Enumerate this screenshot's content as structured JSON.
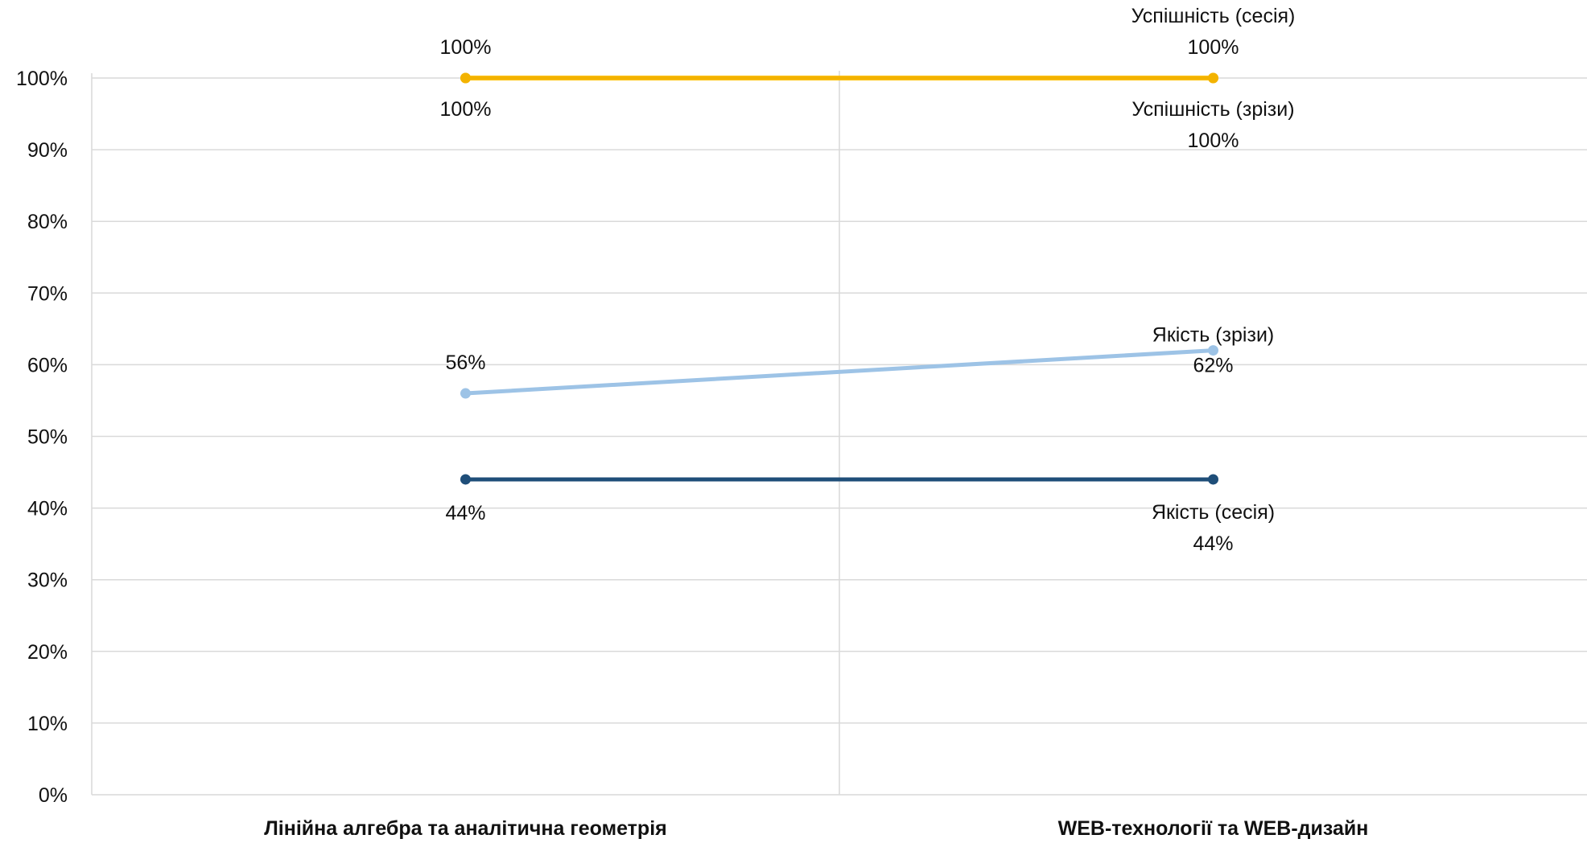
{
  "chart_data": {
    "type": "line",
    "categories": [
      "Лінійна алгебра та аналітична геометрія",
      "WEB-технології та  WEB-дизайн"
    ],
    "ylim": [
      0,
      100
    ],
    "yticks": [
      "0%",
      "10%",
      "20%",
      "30%",
      "40%",
      "50%",
      "60%",
      "70%",
      "80%",
      "90%",
      "100%"
    ],
    "grid": true,
    "legend": "none",
    "series": [
      {
        "name": "Успішність (сесія)",
        "values": [
          100,
          100
        ],
        "value_labels": [
          "100%",
          "100%"
        ],
        "color": "#FFC000"
      },
      {
        "name": "Успішність (зрізи)",
        "values": [
          100,
          100
        ],
        "value_labels": [
          "100%",
          "100%"
        ],
        "color": "#F3B300"
      },
      {
        "name": "Якість (зрізи)",
        "values": [
          56,
          62
        ],
        "value_labels": [
          "56%",
          "62%"
        ],
        "color": "#9DC3E6"
      },
      {
        "name": "Якість (сесія)",
        "values": [
          44,
          44
        ],
        "value_labels": [
          "44%",
          "44%"
        ],
        "color": "#1F4E79"
      }
    ]
  }
}
